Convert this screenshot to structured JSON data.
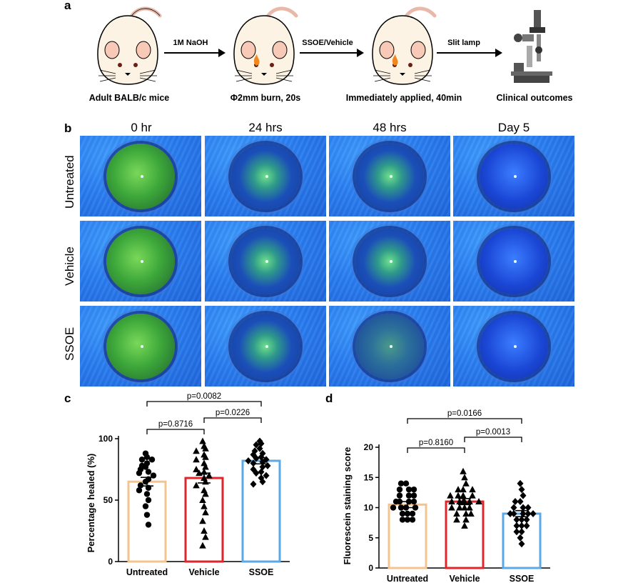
{
  "panels": {
    "a": "a",
    "b": "b",
    "c": "c",
    "d": "d"
  },
  "scheme": {
    "steps": [
      "Adult BALB/c mice",
      "Φ2mm burn, 20s",
      "Immediately applied, 40min",
      "Clinical outcomes"
    ],
    "arrows": [
      "1M NaOH",
      "SSOE/Vehicle",
      "Slit lamp"
    ]
  },
  "grid": {
    "timepoints": [
      "0 hr",
      "24 hrs",
      "48 hrs",
      "Day 5"
    ],
    "groups": [
      "Untreated",
      "Vehicle",
      "SSOE"
    ]
  },
  "colors": {
    "untreated": "#F5C48E",
    "vehicle": "#E0262B",
    "ssoe": "#5AA8E6",
    "stain": "#4DBF3A"
  },
  "chart_data": [
    {
      "type": "bar",
      "panel": "c",
      "categories": [
        "Untreated",
        "Vehicle",
        "SSOE"
      ],
      "values": [
        65,
        68,
        82
      ],
      "sem": [
        3.5,
        4.0,
        2.5
      ],
      "ylabel": "Percentage healed (%)",
      "ylim": [
        0,
        100
      ],
      "yticks": [
        0,
        50,
        100
      ],
      "points": [
        [
          88,
          85,
          83,
          83,
          80,
          78,
          77,
          75,
          73,
          72,
          70,
          67,
          65,
          62,
          60,
          58,
          55,
          50,
          45,
          38,
          30
        ],
        [
          98,
          94,
          92,
          90,
          87,
          85,
          83,
          80,
          77,
          75,
          73,
          72,
          70,
          68,
          65,
          62,
          58,
          55,
          50,
          45,
          40,
          33,
          25,
          20,
          13
        ],
        [
          98,
          96,
          95,
          92,
          90,
          88,
          87,
          85,
          84,
          83,
          82,
          81,
          80,
          78,
          77,
          75,
          73,
          72,
          70,
          68,
          65,
          63
        ]
      ],
      "comparisons": [
        {
          "pair": [
            "Untreated",
            "SSOE"
          ],
          "label": "p=0.0082"
        },
        {
          "pair": [
            "Untreated",
            "Vehicle"
          ],
          "label": "p=0.8716"
        },
        {
          "pair": [
            "Vehicle",
            "SSOE"
          ],
          "label": "p=0.0226"
        }
      ]
    },
    {
      "type": "bar",
      "panel": "d",
      "categories": [
        "Untreated",
        "Vehicle",
        "SSOE"
      ],
      "values": [
        10.5,
        11,
        9
      ],
      "sem": [
        0.5,
        0.5,
        0.5
      ],
      "ylabel": "Fluorescein staining score",
      "ylim": [
        0,
        20
      ],
      "yticks": [
        0,
        5,
        10,
        15,
        20
      ],
      "points": [
        [
          14,
          14,
          13,
          13,
          13,
          12,
          12,
          12,
          11,
          11,
          11,
          11,
          10,
          10,
          10,
          10,
          9,
          9,
          9,
          8,
          8,
          8
        ],
        [
          16,
          15,
          14,
          13,
          13,
          13,
          12,
          12,
          12,
          12,
          11,
          11,
          11,
          11,
          11,
          11,
          10,
          10,
          10,
          10,
          9,
          9,
          9,
          8,
          8,
          7
        ],
        [
          14,
          13,
          12,
          11,
          11,
          10,
          10,
          10,
          9,
          9,
          9,
          9,
          9,
          8,
          8,
          8,
          7,
          7,
          7,
          6,
          6,
          5,
          4
        ]
      ],
      "comparisons": [
        {
          "pair": [
            "Untreated",
            "SSOE"
          ],
          "label": "p=0.0166"
        },
        {
          "pair": [
            "Untreated",
            "Vehicle"
          ],
          "label": "p=0.8160"
        },
        {
          "pair": [
            "Vehicle",
            "SSOE"
          ],
          "label": "p=0.0013"
        }
      ]
    }
  ]
}
